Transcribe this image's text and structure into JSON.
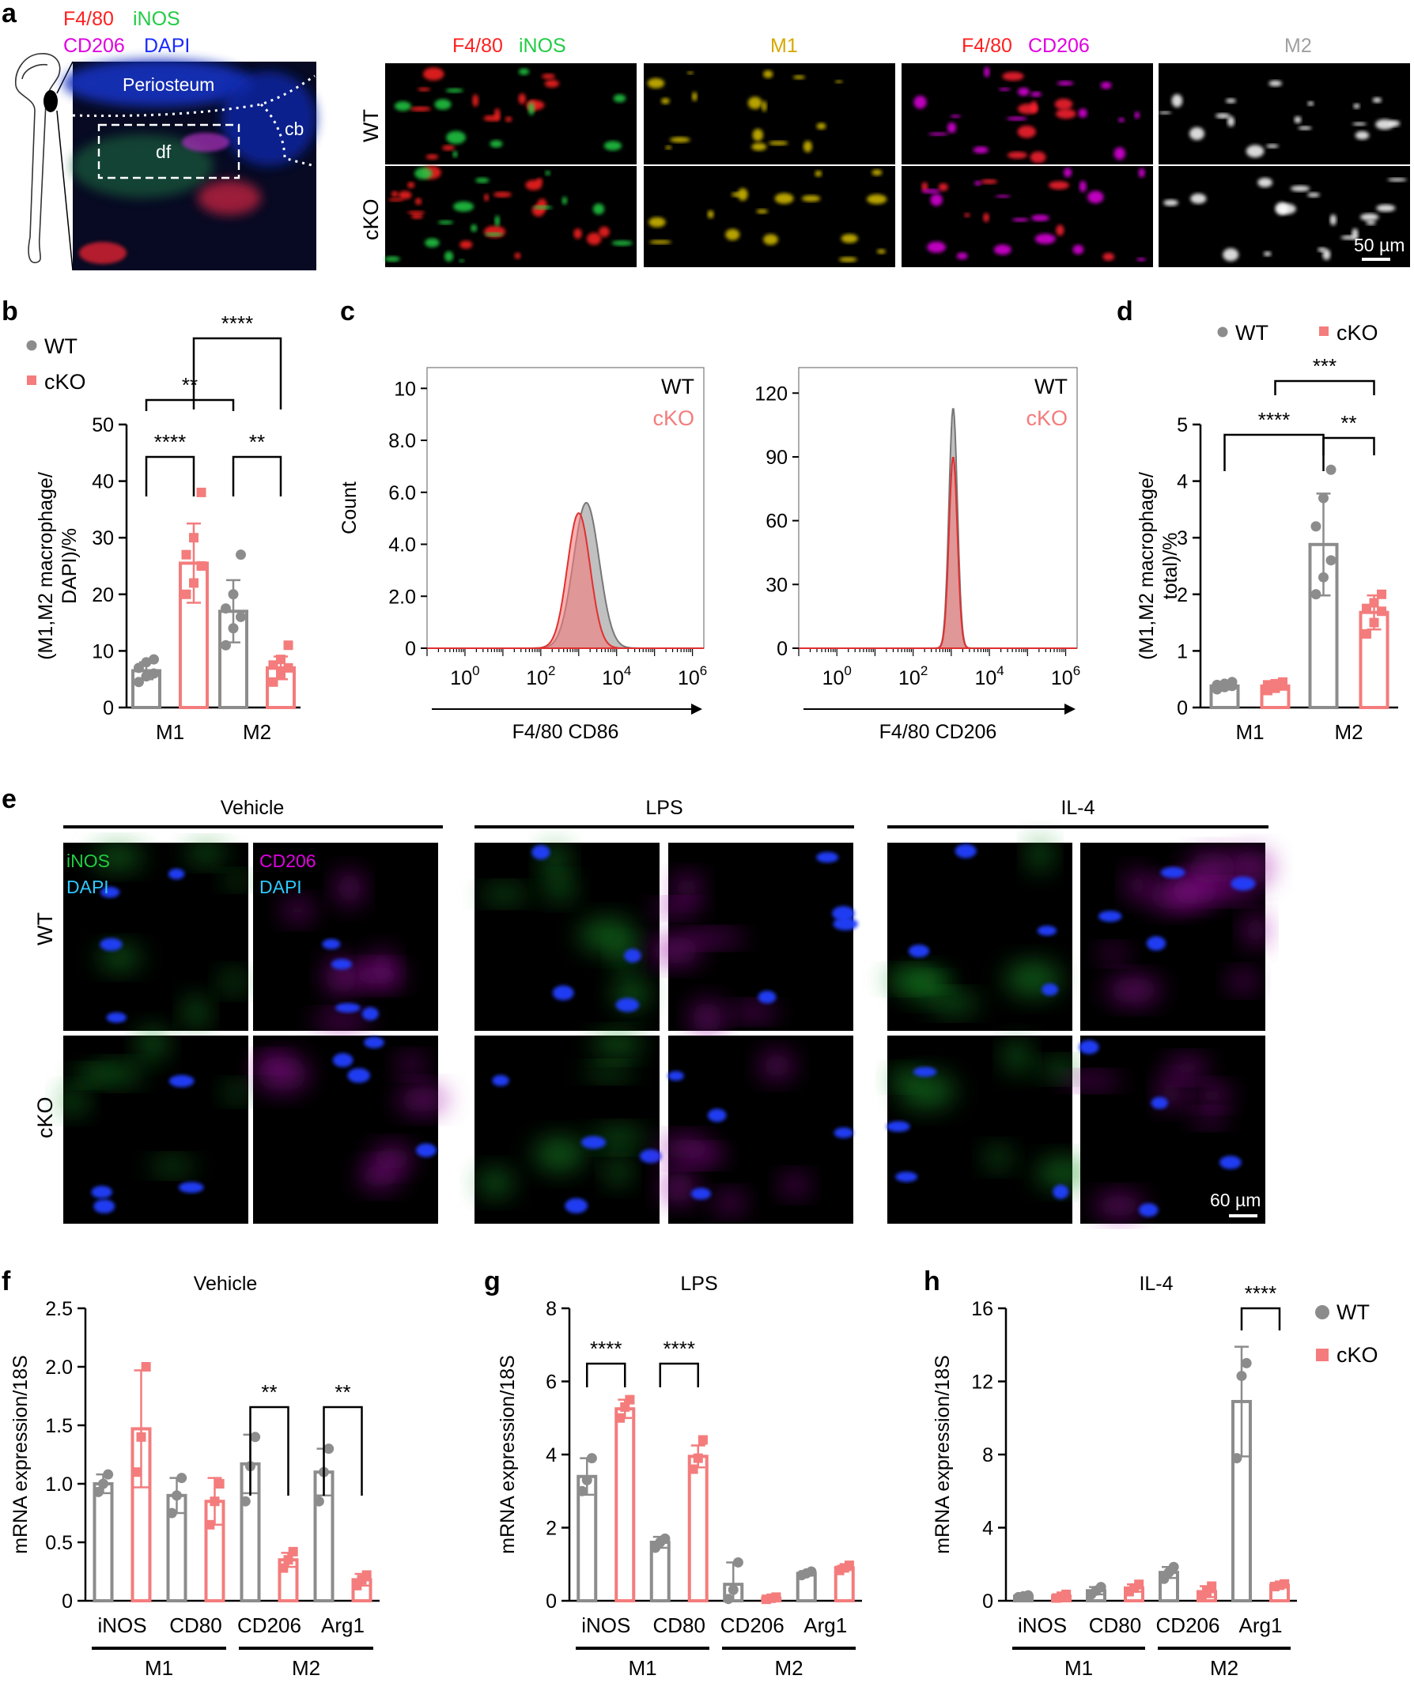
{
  "colors": {
    "wt": "#8c8c8c",
    "cko": "#f47c7c",
    "f480": "#ff2020",
    "inos": "#22cc44",
    "m1": "#d8a800",
    "cd206": "#e000e0",
    "dapi": "#1a2cff",
    "m2": "#a0a0a0",
    "dapi_e": "#2ec8ff"
  },
  "panels": {
    "a": "a",
    "b": "b",
    "c": "c",
    "d": "d",
    "e": "e",
    "f": "f",
    "g": "g",
    "h": "h"
  },
  "panel_a": {
    "legend": [
      "F4/80",
      "iNOS",
      "CD206",
      "DAPI"
    ],
    "overview_labels": {
      "periosteum": "Periosteum",
      "cb": "cb",
      "df": "df"
    },
    "columns": [
      {
        "parts": [
          "F4/80",
          "iNOS"
        ]
      },
      {
        "parts": [
          "M1"
        ]
      },
      {
        "parts": [
          "F4/80",
          "CD206"
        ]
      },
      {
        "parts": [
          "M2"
        ]
      }
    ],
    "rows": [
      "WT",
      "cKO"
    ],
    "scale_bar": "50 µm"
  },
  "panel_e": {
    "groups": [
      "Vehicle",
      "LPS",
      "IL-4"
    ],
    "rows": [
      "WT",
      "cKO"
    ],
    "stain_labels": {
      "inos": "iNOS",
      "dapi": "DAPI",
      "cd206": "CD206"
    },
    "scale_bar": "60 µm"
  },
  "legend": {
    "wt": "WT",
    "cko": "cKO"
  },
  "chart_data": [
    {
      "panel": "b",
      "type": "bar",
      "categories": [
        "M1",
        "M2"
      ],
      "ylabel_lines": [
        "(M1,M2 macrophage/",
        "DAPI)/%"
      ],
      "ylim": [
        0,
        50
      ],
      "yticks": [
        0,
        10,
        20,
        30,
        40,
        50
      ],
      "series": [
        {
          "name": "WT",
          "values": [
            6.5,
            17
          ],
          "err": [
            1.5,
            5.5
          ],
          "points": [
            [
              4.5,
              5.5,
              6,
              7,
              8,
              8.5
            ],
            [
              11,
              14,
              16,
              17.5,
              20,
              27
            ]
          ]
        },
        {
          "name": "cKO",
          "values": [
            25.5,
            7
          ],
          "err": [
            7,
            2
          ],
          "points": [
            [
              20,
              22,
              25,
              27,
              30,
              38
            ],
            [
              4.5,
              6,
              7,
              7.5,
              8.5,
              11
            ]
          ]
        }
      ],
      "significance": [
        {
          "label": "****",
          "from": [
            0,
            0
          ],
          "to": [
            0,
            1
          ]
        },
        {
          "label": "**",
          "from": [
            1,
            0
          ],
          "to": [
            1,
            1
          ]
        },
        {
          "label": "**",
          "from": [
            0,
            0
          ],
          "to": [
            1,
            0
          ]
        },
        {
          "label": "****",
          "from": [
            0,
            1
          ],
          "to": [
            1,
            1
          ]
        }
      ]
    },
    {
      "panel": "c",
      "type": "area",
      "plots": [
        {
          "xlabel": "F4/80 CD86",
          "ylabel": "Count",
          "yticks": [
            "0",
            "2.0",
            "4.0",
            "6.0",
            "8.0",
            "10"
          ],
          "ymax": 10.8,
          "xticks_exp": [
            0,
            2,
            4,
            6
          ],
          "xlim_log": [
            -1,
            6.3
          ],
          "series": [
            {
              "name": "WT",
              "peak_log": 3.2,
              "peak": 5.6,
              "width": 0.34
            },
            {
              "name": "cKO",
              "peak_log": 3.0,
              "peak": 5.2,
              "width": 0.3
            }
          ]
        },
        {
          "xlabel": "F4/80 CD206",
          "ylabel": "",
          "yticks": [
            "0",
            "30",
            "60",
            "90",
            "120"
          ],
          "ymax": 132,
          "xticks_exp": [
            0,
            2,
            4,
            6
          ],
          "xlim_log": [
            -1,
            6.3
          ],
          "series": [
            {
              "name": "WT",
              "peak_log": 3.05,
              "peak": 113,
              "width": 0.11
            },
            {
              "name": "cKO",
              "peak_log": 3.05,
              "peak": 90,
              "width": 0.11
            }
          ]
        }
      ],
      "legend": [
        "WT",
        "cKO"
      ]
    },
    {
      "panel": "d",
      "type": "bar",
      "categories": [
        "M1",
        "M2"
      ],
      "ylabel_lines": [
        "(M1,M2 macrophage/",
        "total)/%"
      ],
      "ylim": [
        0,
        5
      ],
      "yticks": [
        0,
        1,
        2,
        3,
        4,
        5
      ],
      "series": [
        {
          "name": "WT",
          "values": [
            0.38,
            2.88
          ],
          "err": [
            0.06,
            0.9
          ],
          "points": [
            [
              0.32,
              0.36,
              0.38,
              0.4,
              0.42,
              0.45
            ],
            [
              2.0,
              2.3,
              2.6,
              3.2,
              3.7,
              4.2
            ]
          ]
        },
        {
          "name": "cKO",
          "values": [
            0.38,
            1.68
          ],
          "err": [
            0.06,
            0.3
          ],
          "points": [
            [
              0.3,
              0.34,
              0.38,
              0.4,
              0.42,
              0.45
            ],
            [
              1.3,
              1.5,
              1.7,
              1.75,
              1.85,
              2.0
            ]
          ]
        }
      ],
      "significance": [
        {
          "label": "**",
          "from": [
            1,
            0
          ],
          "to": [
            1,
            1
          ]
        },
        {
          "label": "****",
          "from": [
            0,
            0
          ],
          "to": [
            1,
            0
          ]
        },
        {
          "label": "***",
          "from": [
            0,
            1
          ],
          "to": [
            1,
            1
          ]
        }
      ]
    },
    {
      "panel": "f",
      "type": "bar",
      "title": "Vehicle",
      "categories": [
        "iNOS",
        "CD80",
        "CD206",
        "Arg1"
      ],
      "groups": [
        "M1",
        "M2"
      ],
      "ylabel": "mRNA expression/18S",
      "ylim": [
        0,
        2.5
      ],
      "yticks": [
        "0",
        "0.5",
        "1.0",
        "1.5",
        "2.0",
        "2.5"
      ],
      "series": [
        {
          "name": "WT",
          "values": [
            1.0,
            0.9,
            1.17,
            1.1
          ],
          "err": [
            0.08,
            0.15,
            0.25,
            0.2
          ],
          "points": [
            [
              0.93,
              1.0,
              1.08
            ],
            [
              0.75,
              0.9,
              1.05
            ],
            [
              0.85,
              1.15,
              1.4
            ],
            [
              0.85,
              1.1,
              1.3
            ]
          ]
        },
        {
          "name": "cKO",
          "values": [
            1.47,
            0.85,
            0.35,
            0.18
          ],
          "err": [
            0.5,
            0.2,
            0.06,
            0.05
          ],
          "points": [
            [
              1.1,
              1.4,
              2.0
            ],
            [
              0.65,
              0.85,
              1.0
            ],
            [
              0.28,
              0.35,
              0.42
            ],
            [
              0.13,
              0.18,
              0.22
            ]
          ]
        }
      ],
      "significance": [
        {
          "label": "**",
          "from": [
            2,
            0
          ],
          "to": [
            2,
            1
          ]
        },
        {
          "label": "**",
          "from": [
            3,
            0
          ],
          "to": [
            3,
            1
          ]
        }
      ]
    },
    {
      "panel": "g",
      "type": "bar",
      "title": "LPS",
      "categories": [
        "iNOS",
        "CD80",
        "CD206",
        "Arg1"
      ],
      "groups": [
        "M1",
        "M2"
      ],
      "ylabel": "mRNA expression/18S",
      "ylim": [
        0,
        8
      ],
      "yticks": [
        "0",
        "2",
        "4",
        "6",
        "8"
      ],
      "series": [
        {
          "name": "WT",
          "values": [
            3.4,
            1.6,
            0.45,
            0.75
          ],
          "err": [
            0.5,
            0.15,
            0.6,
            0.06
          ],
          "points": [
            [
              3.0,
              3.3,
              3.9
            ],
            [
              1.45,
              1.6,
              1.7
            ],
            [
              0.05,
              0.3,
              1.05
            ],
            [
              0.7,
              0.75,
              0.8
            ]
          ]
        },
        {
          "name": "cKO",
          "values": [
            5.25,
            3.95,
            0.07,
            0.9
          ],
          "err": [
            0.25,
            0.3,
            0.04,
            0.06
          ],
          "points": [
            [
              5.0,
              5.3,
              5.5
            ],
            [
              3.6,
              3.9,
              4.4
            ],
            [
              0.04,
              0.07,
              0.1
            ],
            [
              0.83,
              0.9,
              0.97
            ]
          ]
        }
      ],
      "significance": [
        {
          "label": "****",
          "from": [
            0,
            0
          ],
          "to": [
            0,
            1
          ]
        },
        {
          "label": "****",
          "from": [
            1,
            0
          ],
          "to": [
            1,
            1
          ]
        }
      ]
    },
    {
      "panel": "h",
      "type": "bar",
      "title": "IL-4",
      "categories": [
        "iNOS",
        "CD80",
        "CD206",
        "Arg1"
      ],
      "groups": [
        "M1",
        "M2"
      ],
      "ylabel": "mRNA expression/18S",
      "ylim": [
        0,
        16
      ],
      "yticks": [
        "0",
        "4",
        "8",
        "12",
        "16"
      ],
      "series": [
        {
          "name": "WT",
          "values": [
            0.25,
            0.55,
            1.55,
            10.9
          ],
          "err": [
            0.05,
            0.2,
            0.3,
            3.0
          ],
          "points": [
            [
              0.2,
              0.25,
              0.3
            ],
            [
              0.35,
              0.55,
              0.75
            ],
            [
              1.2,
              1.55,
              1.85
            ],
            [
              7.8,
              12.3,
              13.0
            ]
          ]
        },
        {
          "name": "cKO",
          "values": [
            0.25,
            0.7,
            0.5,
            0.85
          ],
          "err": [
            0.1,
            0.2,
            0.3,
            0.08
          ],
          "points": [
            [
              0.15,
              0.25,
              0.35
            ],
            [
              0.5,
              0.7,
              0.9
            ],
            [
              0.2,
              0.5,
              0.8
            ],
            [
              0.78,
              0.85,
              0.92
            ]
          ]
        }
      ],
      "significance": [
        {
          "label": "****",
          "from": [
            3,
            0
          ],
          "to": [
            3,
            1
          ]
        }
      ]
    }
  ]
}
